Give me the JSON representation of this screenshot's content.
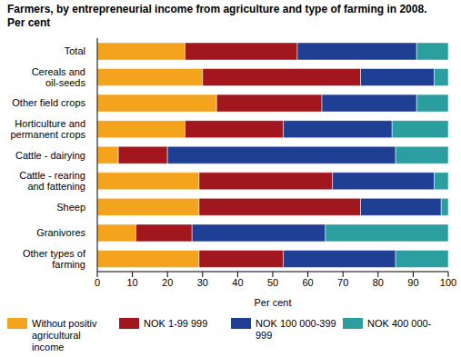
{
  "chart_data": {
    "type": "bar",
    "title": "Farmers, by entrepreneurial income from agriculture and type of farming in 2008. Per cent",
    "orientation": "horizontal",
    "stacked": true,
    "grid": false,
    "legend": "bottom",
    "xlabel": "Per cent",
    "xlim": [
      0,
      100
    ],
    "xticks": [
      0,
      10,
      20,
      30,
      40,
      50,
      60,
      70,
      80,
      90,
      100
    ],
    "categories": [
      "Total",
      "Cereals and oil-seeds",
      "Other field crops",
      "Horticulture and permanent crops",
      "Cattle - dairying",
      "Cattle - rearing and fattening",
      "Sheep",
      "Granivores",
      "Other types of farming"
    ],
    "series": [
      {
        "name": "Without positiv agricultural income",
        "color": "#f4a41c",
        "values": [
          25,
          30,
          34,
          25,
          6,
          29,
          29,
          11,
          29
        ]
      },
      {
        "name": "NOK 1-99 999",
        "color": "#a1171d",
        "values": [
          32,
          45,
          30,
          28,
          14,
          38,
          46,
          16,
          24
        ]
      },
      {
        "name": "NOK 100 000-399 999",
        "color": "#1f3f95",
        "values": [
          34,
          21,
          27,
          31,
          65,
          29,
          23,
          38,
          32
        ]
      },
      {
        "name": "NOK 400 000-",
        "color": "#2b9ea0",
        "values": [
          9,
          4,
          9,
          16,
          15,
          4,
          2,
          35,
          15
        ]
      }
    ]
  }
}
